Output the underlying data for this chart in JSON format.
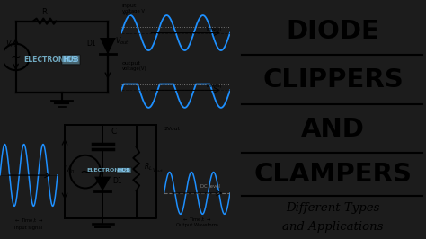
{
  "bg_color": "#1a1a1a",
  "left_bg": "#2a2a2a",
  "title_lines": [
    "DIODE",
    "CLIPPERS",
    "AND",
    "CLAMPERS"
  ],
  "subtitle_line1": "Different Types",
  "subtitle_line2": "and Applications",
  "title_color": "#000000",
  "subtitle_color": "#000000",
  "right_bg": "#ffffff",
  "circuit_bg": "#e8e8e8",
  "watermark_color": "#87ceeb",
  "sine_color": "#1e90ff",
  "line_color": "#000000",
  "underline_color": "#000000",
  "clip_level": 0.35,
  "t_periods": 3,
  "wave_lw": 1.4
}
